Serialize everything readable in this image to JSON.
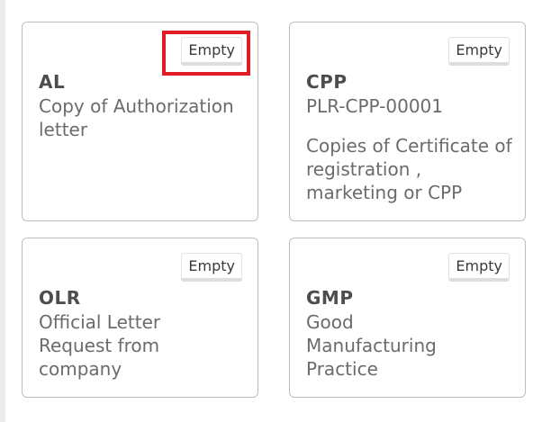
{
  "cards": [
    {
      "badge": "Empty",
      "code": "AL",
      "reference": "",
      "description": "Copy of Authorization letter"
    },
    {
      "badge": "Empty",
      "code": "CPP",
      "reference": "PLR-CPP-00001",
      "description": "Copies of Certificate of registration , marketing or CPP"
    },
    {
      "badge": "Empty",
      "code": "OLR",
      "reference": "",
      "description": "Official Letter Request from company"
    },
    {
      "badge": "Empty",
      "code": "GMP",
      "reference": "",
      "description": "Good Manufacturing Practice"
    }
  ],
  "highlight_color": "#e01c24"
}
